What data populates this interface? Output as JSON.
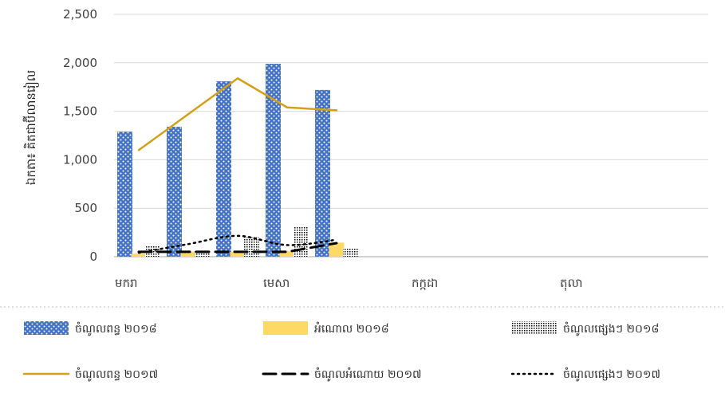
{
  "chart_data": {
    "type": "bar",
    "ylabel": "ឯកតា៖ គិតជាប៊ីលានរៀល",
    "ylim": [
      0,
      2500
    ],
    "yticks": [
      0,
      500,
      1000,
      1500,
      2000,
      2500
    ],
    "ytick_labels": [
      "0",
      "500",
      "1,000",
      "1,500",
      "2,000",
      "2,500"
    ],
    "grid": true,
    "legend_position": "bottom",
    "months": 12,
    "xtick_labels": [
      {
        "month": 1,
        "label": "មករា"
      },
      {
        "month": 4,
        "label": "មេសា"
      },
      {
        "month": 7,
        "label": "កក្កដា"
      },
      {
        "month": 10,
        "label": "តុលា"
      }
    ],
    "bar_series": [
      {
        "name": "ចំណូលពន្ធ ២០១៨",
        "pattern": "blue-dots",
        "color": "#4472C4",
        "values": [
          1290,
          1340,
          1810,
          1990,
          1720,
          null,
          null,
          null,
          null,
          null,
          null,
          null
        ]
      },
      {
        "name": "អំណោល ២០១៨",
        "pattern": "solid",
        "color": "#FFD966",
        "values": [
          30,
          50,
          50,
          60,
          145,
          null,
          null,
          null,
          null,
          null,
          null,
          null
        ]
      },
      {
        "name": "ចំណូលផ្សេងៗ ២០១៨",
        "pattern": "black-dots",
        "color": "#000000",
        "values": [
          110,
          60,
          200,
          310,
          90,
          null,
          null,
          null,
          null,
          null,
          null,
          null
        ]
      }
    ],
    "line_series": [
      {
        "name": "ចំណូលពន្ធ ២០១៧",
        "style": "solid",
        "color": "#D4A017",
        "values": [
          1100,
          1470,
          1840,
          1540,
          1510,
          null,
          null,
          null,
          null,
          null,
          null,
          null
        ]
      },
      {
        "name": "ចំណូលអំណោយ ២០១៧",
        "style": "dash",
        "color": "#000000",
        "values": [
          50,
          50,
          50,
          50,
          140,
          null,
          null,
          null,
          null,
          null,
          null,
          null
        ]
      },
      {
        "name": "ចំណូលផ្សេងៗ ២០១៧",
        "style": "dot",
        "color": "#000000",
        "values": [
          40,
          130,
          215,
          120,
          175,
          null,
          null,
          null,
          null,
          null,
          null,
          null
        ]
      }
    ]
  }
}
